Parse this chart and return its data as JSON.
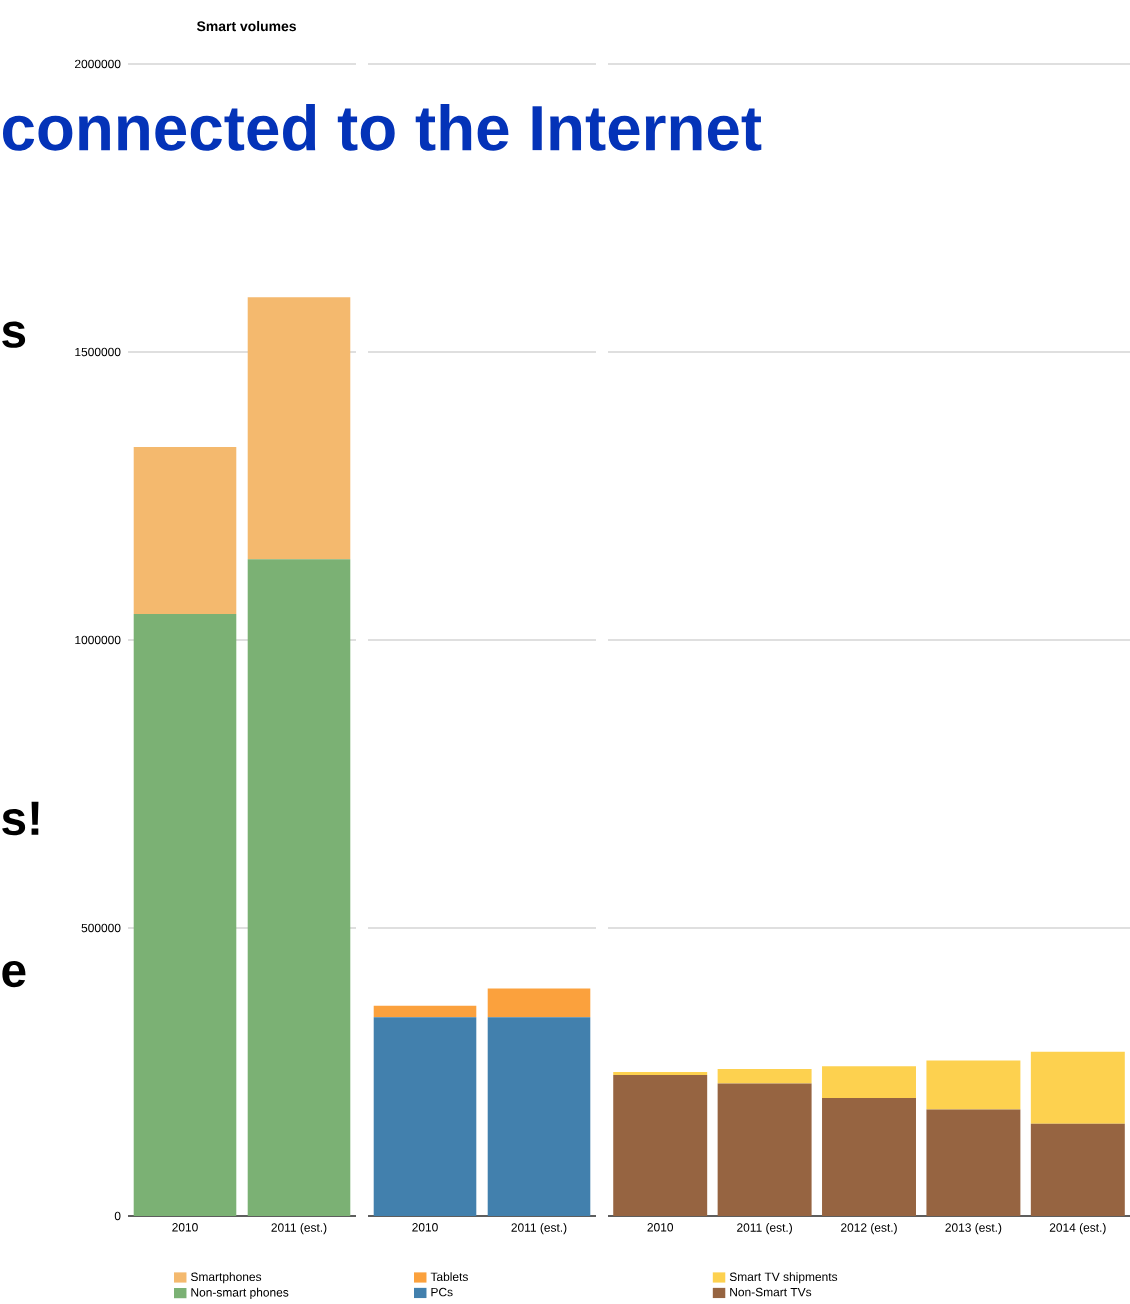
{
  "chart_data": [
    {
      "type": "bar",
      "title": "Smart volumes",
      "stacked": true,
      "categories": [
        "2010",
        "2011 (est.)"
      ],
      "series": [
        {
          "name": "Non-smart phones",
          "color": "#7bb174",
          "values": [
            1045000,
            1140000
          ]
        },
        {
          "name": "Smartphones",
          "color": "#f4b96e",
          "values": [
            290000,
            455000
          ]
        }
      ],
      "ylim": [
        0,
        2000000
      ],
      "yticks": [
        0,
        500000,
        1000000,
        1500000,
        2000000
      ],
      "grid": "y",
      "legend": "bottom",
      "annotations": [
        "connected to the Internet",
        "s",
        "s!",
        "e"
      ]
    },
    {
      "type": "bar",
      "stacked": true,
      "categories": [
        "2010",
        "2011 (est.)"
      ],
      "series": [
        {
          "name": "PCs",
          "color": "#4280ad",
          "values": [
            345000,
            345000
          ]
        },
        {
          "name": "Tablets",
          "color": "#fba13d",
          "values": [
            20000,
            50000
          ]
        }
      ],
      "ylim": [
        0,
        2000000
      ],
      "yticks": [
        0,
        500000,
        1000000,
        1500000,
        2000000
      ],
      "grid": "y",
      "legend": "bottom",
      "tick_labels": "x"
    },
    {
      "type": "bar",
      "stacked": true,
      "categories": [
        "2010",
        "2011 (est.)",
        "2012 (est.)",
        "2013 (est.)",
        "2014 (est.)"
      ],
      "series": [
        {
          "name": "Non-Smart TVs",
          "color": "#966441",
          "values": [
            245000,
            230000,
            205000,
            185000,
            160000
          ]
        },
        {
          "name": "Smart TV shipments",
          "color": "#fdd14f",
          "values": [
            5000,
            25000,
            55000,
            85000,
            125000
          ]
        }
      ],
      "ylim": [
        0,
        2000000
      ],
      "yticks": [
        0,
        500000,
        1000000,
        1500000,
        2000000
      ],
      "grid": "y",
      "legend": "bottom",
      "tick_labels": "x"
    }
  ]
}
